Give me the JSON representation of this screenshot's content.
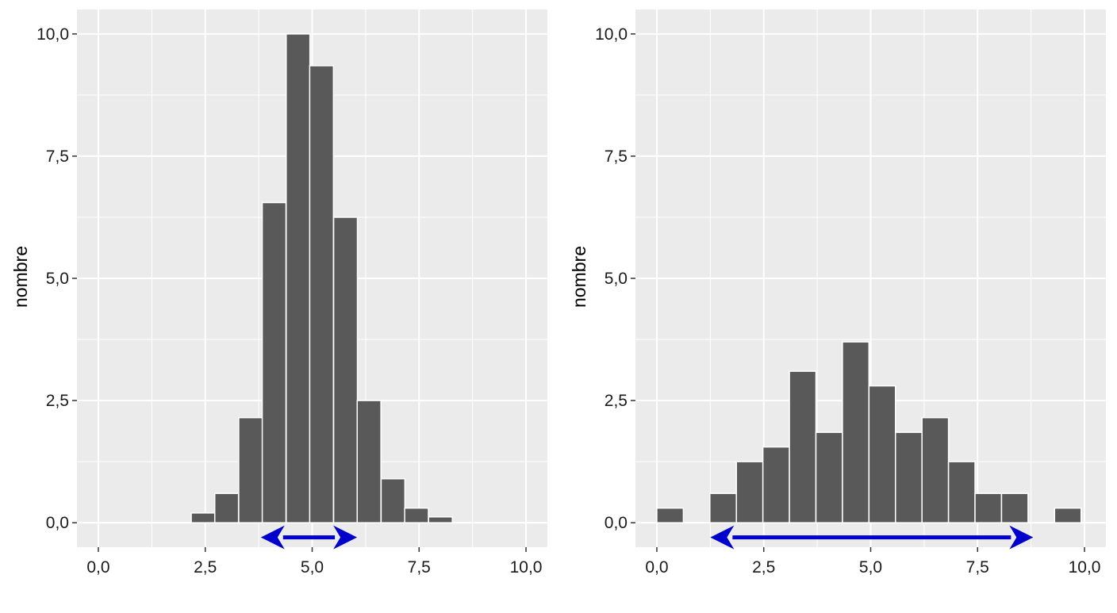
{
  "chart_data": [
    {
      "type": "bar",
      "title": "",
      "xlabel": "",
      "ylabel": "nombre",
      "xlim": [
        -0.5,
        10.5
      ],
      "ylim": [
        -0.5,
        10.5
      ],
      "grid": true,
      "xticks": [
        "0,0",
        "2,5",
        "5,0",
        "7,5",
        "10,0"
      ],
      "xtick_values": [
        0,
        2.5,
        5,
        7.5,
        10
      ],
      "yticks": [
        "0,0",
        "2,5",
        "5,0",
        "7,5",
        "10,0"
      ],
      "ytick_values": [
        0,
        2.5,
        5,
        7.5,
        10
      ],
      "bin_width": 0.555,
      "bin_centers": [
        2.45,
        3.0,
        3.56,
        4.11,
        4.67,
        5.22,
        5.78,
        6.33,
        6.89,
        7.44,
        8.0
      ],
      "values": [
        0.2,
        0.6,
        2.15,
        6.55,
        10.0,
        9.35,
        6.25,
        2.5,
        0.9,
        0.3,
        0.12
      ],
      "bar_color": "#595959",
      "spread_arrow": {
        "from": 3.8,
        "to": 6.05,
        "y": -0.3,
        "color": "#0000cc"
      }
    },
    {
      "type": "bar",
      "title": "",
      "xlabel": "",
      "ylabel": "nombre",
      "xlim": [
        -0.5,
        10.5
      ],
      "ylim": [
        -0.5,
        10.5
      ],
      "grid": true,
      "xticks": [
        "0,0",
        "2,5",
        "5,0",
        "7,5",
        "10,0"
      ],
      "xtick_values": [
        0,
        2.5,
        5,
        7.5,
        10
      ],
      "yticks": [
        "0,0",
        "2,5",
        "5,0",
        "7,5",
        "10,0"
      ],
      "ytick_values": [
        0,
        2.5,
        5,
        7.5,
        10
      ],
      "bin_width": 0.62,
      "bin_centers": [
        0.31,
        1.55,
        2.17,
        2.79,
        3.41,
        4.03,
        4.65,
        5.27,
        5.89,
        6.51,
        7.13,
        7.75,
        8.37,
        9.61
      ],
      "values": [
        0.3,
        0.6,
        1.25,
        1.55,
        3.1,
        1.85,
        3.7,
        2.8,
        1.85,
        2.15,
        1.25,
        0.6,
        0.6,
        0.3
      ],
      "bar_color": "#595959",
      "spread_arrow": {
        "from": 1.25,
        "to": 8.8,
        "y": -0.3,
        "color": "#0000cc"
      }
    }
  ]
}
